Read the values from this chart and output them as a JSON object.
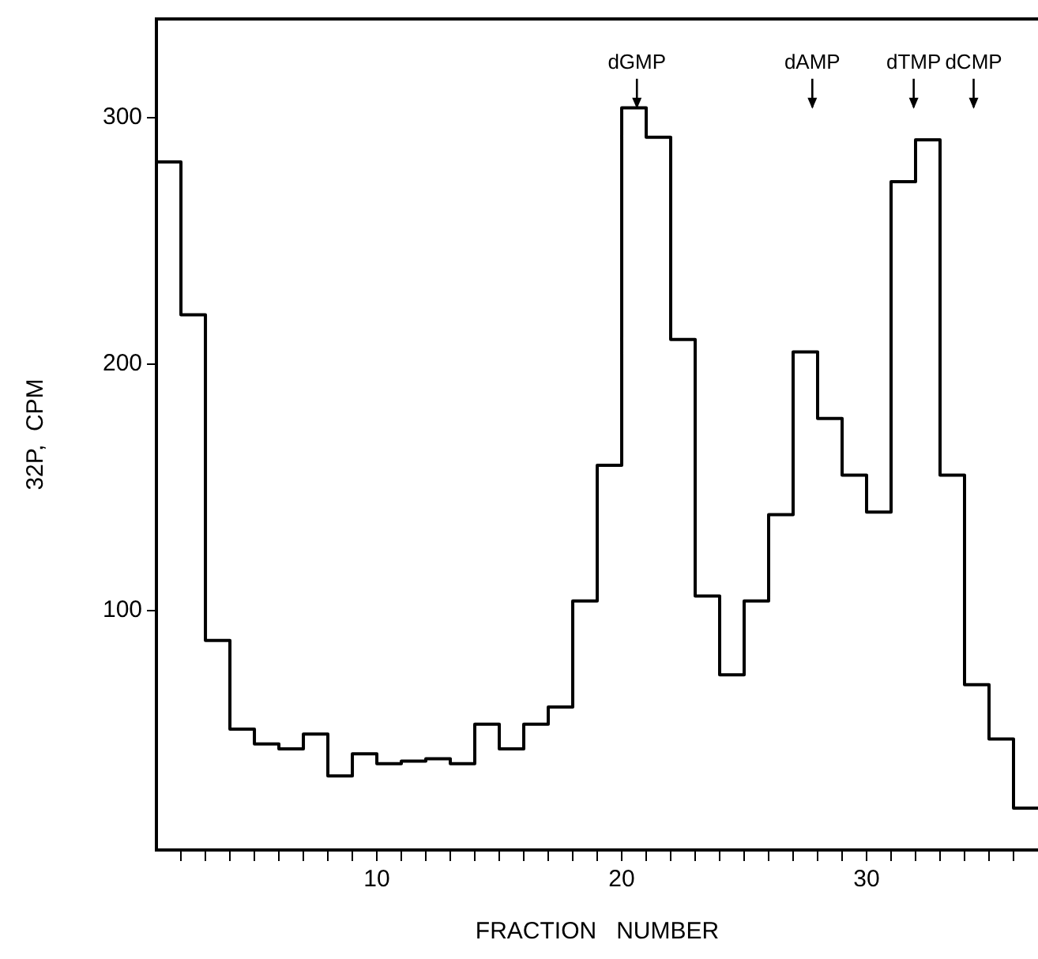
{
  "chart_data": {
    "type": "histogram",
    "xlabel": "FRACTION   NUMBER",
    "ylabel": "32P,  CPM",
    "bins": [
      1,
      2,
      3,
      4,
      5,
      6,
      7,
      8,
      9,
      10,
      11,
      12,
      13,
      14,
      15,
      16,
      17,
      18,
      19,
      20,
      21,
      22,
      23,
      24,
      25,
      26,
      27,
      28,
      29,
      30,
      31,
      32,
      33,
      34,
      35,
      36,
      37
    ],
    "values": [
      282,
      220,
      88,
      52,
      46,
      44,
      50,
      33,
      42,
      38,
      39,
      40,
      38,
      54,
      44,
      54,
      61,
      104,
      159,
      304,
      292,
      210,
      106,
      74,
      104,
      139,
      205,
      178,
      155,
      140,
      274,
      291,
      155,
      70,
      48,
      20
    ],
    "color": "#000000",
    "xlim": [
      1,
      37
    ],
    "ylim": [
      3,
      340
    ],
    "xticks": [
      {
        "value": 2,
        "label": null
      },
      {
        "value": 3,
        "label": null
      },
      {
        "value": 4,
        "label": null
      },
      {
        "value": 5,
        "label": null
      },
      {
        "value": 6,
        "label": null
      },
      {
        "value": 7,
        "label": null
      },
      {
        "value": 8,
        "label": null
      },
      {
        "value": 9,
        "label": null
      },
      10,
      {
        "value": 11,
        "label": null
      },
      {
        "value": 12,
        "label": null
      },
      {
        "value": 13,
        "label": null
      },
      {
        "value": 14,
        "label": null
      },
      {
        "value": 15,
        "label": null
      },
      {
        "value": 16,
        "label": null
      },
      {
        "value": 17,
        "label": null
      },
      {
        "value": 18,
        "label": null
      },
      {
        "value": 19,
        "label": null
      },
      20,
      {
        "value": 21,
        "label": null
      },
      {
        "value": 22,
        "label": null
      },
      {
        "value": 23,
        "label": null
      },
      {
        "value": 24,
        "label": null
      },
      {
        "value": 25,
        "label": null
      },
      {
        "value": 26,
        "label": null
      },
      {
        "value": 27,
        "label": null
      },
      {
        "value": 28,
        "label": null
      },
      {
        "value": 29,
        "label": null
      },
      30,
      {
        "value": 31,
        "label": null
      },
      {
        "value": 32,
        "label": null
      },
      {
        "value": 33,
        "label": null
      },
      {
        "value": 34,
        "label": null
      },
      {
        "value": 35,
        "label": null
      },
      {
        "value": 36,
        "label": null
      }
    ],
    "yticks": [
      100,
      200,
      300
    ],
    "grid": false,
    "legend": false,
    "annotations": [
      "dGMP",
      "dAMP",
      "dTMP",
      "dCMP"
    ]
  }
}
